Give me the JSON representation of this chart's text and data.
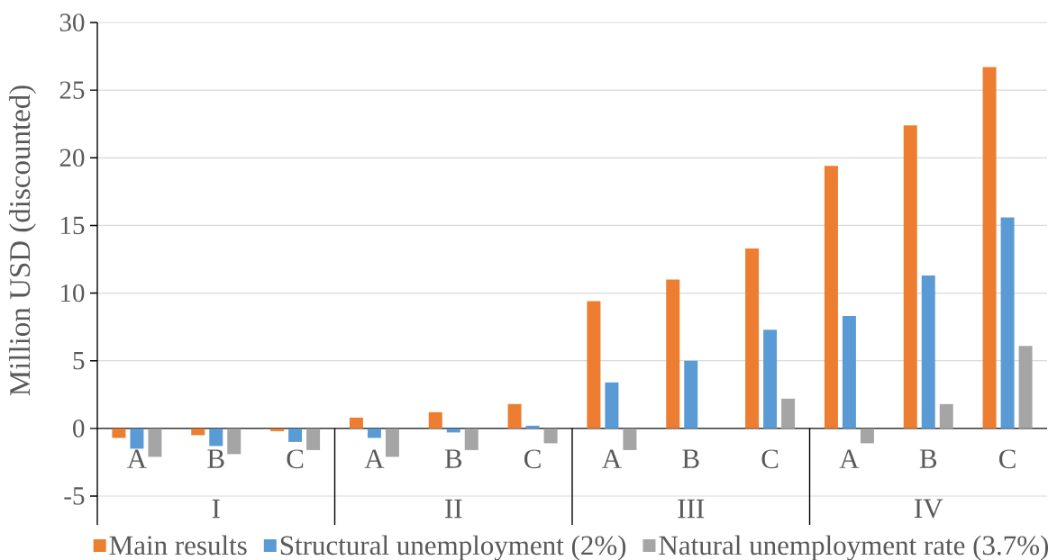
{
  "chart_data": {
    "type": "bar",
    "ylabel": "Million USD (discounted)",
    "categories": [
      "A",
      "B",
      "C",
      "A",
      "B",
      "C",
      "A",
      "B",
      "C",
      "A",
      "B",
      "C"
    ],
    "annotations": [
      "I",
      "II",
      "III",
      "IV"
    ],
    "series": [
      {
        "name": "Main results",
        "color": "#ed7d31",
        "values": [
          -0.7,
          -0.5,
          -0.2,
          0.8,
          1.2,
          1.8,
          9.4,
          11.0,
          13.3,
          19.4,
          22.4,
          26.7
        ]
      },
      {
        "name": "Structural unemployment (2%)",
        "color": "#5b9bd5",
        "values": [
          -1.5,
          -1.3,
          -1.0,
          -0.7,
          -0.3,
          0.2,
          3.4,
          5.0,
          7.3,
          8.3,
          11.3,
          15.6
        ]
      },
      {
        "name": "Natural unemployment rate (3.7%)",
        "color": "#a5a5a5",
        "values": [
          -2.1,
          -1.9,
          -1.6,
          -2.1,
          -1.6,
          -1.1,
          -1.6,
          null,
          2.2,
          -1.1,
          1.8,
          6.1
        ]
      }
    ],
    "ylim": [
      -5,
      30
    ],
    "yticks": [
      -5,
      0,
      5,
      10,
      15,
      20,
      25,
      30
    ],
    "grid": "y",
    "legend": "bottom"
  }
}
